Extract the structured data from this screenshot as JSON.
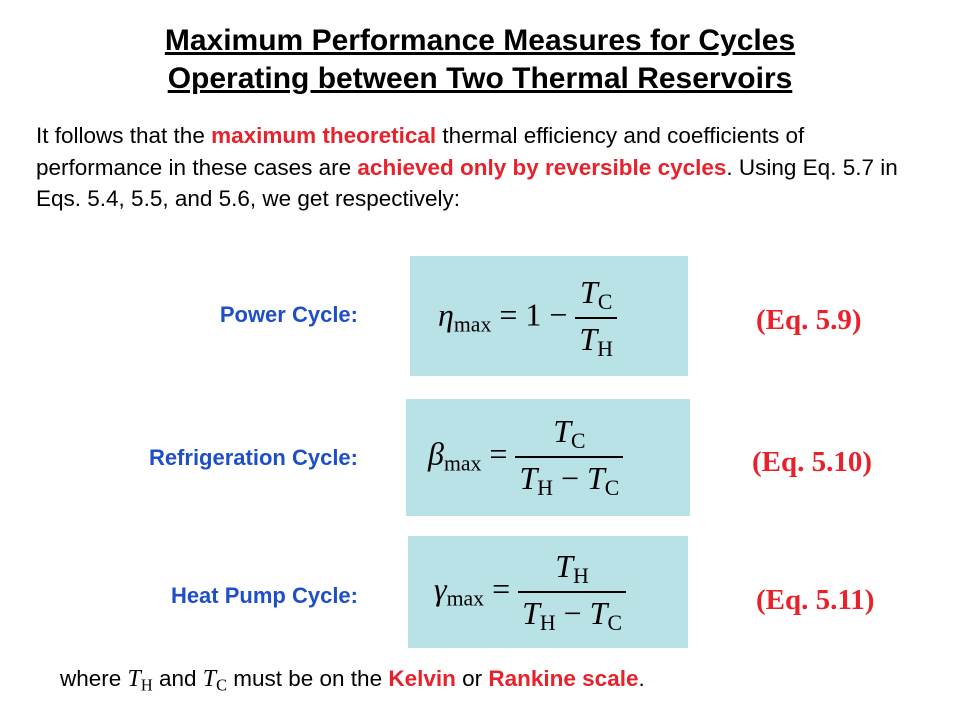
{
  "title": {
    "line1": "Maximum Performance Measures for Cycles",
    "line2": "Operating between Two Thermal Reservoirs"
  },
  "intro": {
    "p1": "It follows that the ",
    "r1": "maximum theoretical",
    "p2": " thermal efficiency and coefficients of performance in these cases are ",
    "r2": "achieved only by reversible cycles",
    "p3": ".  Using Eq. 5.7 in Eqs. 5.4, 5.5, and 5.6, we get respectively:"
  },
  "cycles": [
    {
      "label": "Power Cycle:",
      "symbol": "η",
      "sub": "max",
      "lhs_prefix": "= 1 −",
      "num_var": "T",
      "num_sub": "C",
      "den": "T_H",
      "eq_number": "(Eq. 5.9)"
    },
    {
      "label": "Refrigeration Cycle:",
      "symbol": "β",
      "sub": "max",
      "num_var": "T",
      "num_sub": "C",
      "eq_number": "(Eq. 5.10)"
    },
    {
      "label": "Heat Pump Cycle:",
      "symbol": "γ",
      "sub": "max",
      "num_var": "T",
      "num_sub": "H",
      "eq_number": "(Eq. 5.11)"
    }
  ],
  "common": {
    "T": "T",
    "H": "H",
    "C": "C",
    "equals": "=",
    "one_minus": "1 −",
    "minus": "−"
  },
  "footer": {
    "w1": "where ",
    "w2": " and ",
    "w3": " must be on the ",
    "kelvin": "Kelvin",
    "w4": " or ",
    "rankine": "Rankine scale",
    "w5": "."
  },
  "colors": {
    "accent_red": "#e8212b",
    "label_blue": "#1f4fc8",
    "box_bg": "#b9e2e6"
  }
}
